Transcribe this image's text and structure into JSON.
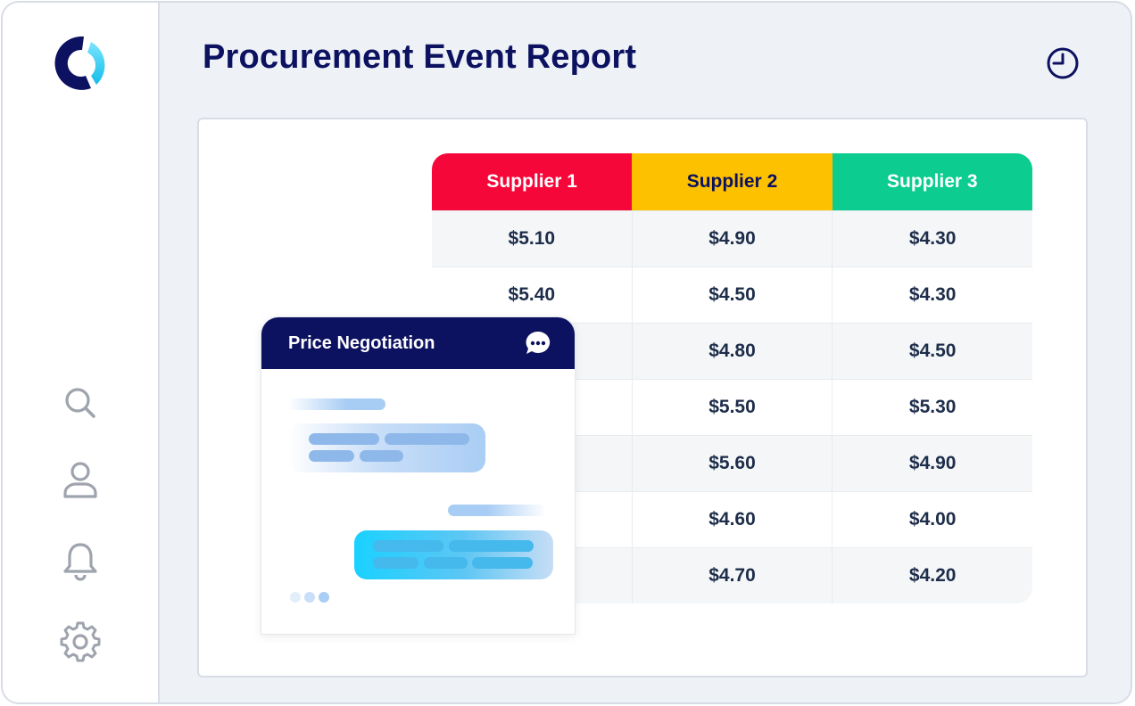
{
  "page": {
    "title": "Procurement Event Report"
  },
  "icons": {
    "logo": "logo-icon",
    "history": "clock-icon",
    "sidebar": [
      "search-icon",
      "user-icon",
      "bell-icon",
      "gear-icon"
    ],
    "chat": "chat-bubble-icon"
  },
  "colors": {
    "navy": "#0c1160",
    "supplier1": "#f5073a",
    "supplier2": "#fdc100",
    "supplier3": "#0ccc8f",
    "accent": "#1ad1ff"
  },
  "table": {
    "headers": [
      "Supplier 1",
      "Supplier 2",
      "Supplier 3"
    ],
    "rows": [
      [
        "$5.10",
        "$4.90",
        "$4.30"
      ],
      [
        "$5.40",
        "$4.50",
        "$4.30"
      ],
      [
        "",
        "$4.80",
        "$4.50"
      ],
      [
        "",
        "$5.50",
        "$5.30"
      ],
      [
        "",
        "$5.60",
        "$4.90"
      ],
      [
        "",
        "$4.60",
        "$4.00"
      ],
      [
        "",
        "$4.70",
        "$4.20"
      ]
    ]
  },
  "chat": {
    "title": "Price Negotiation"
  }
}
